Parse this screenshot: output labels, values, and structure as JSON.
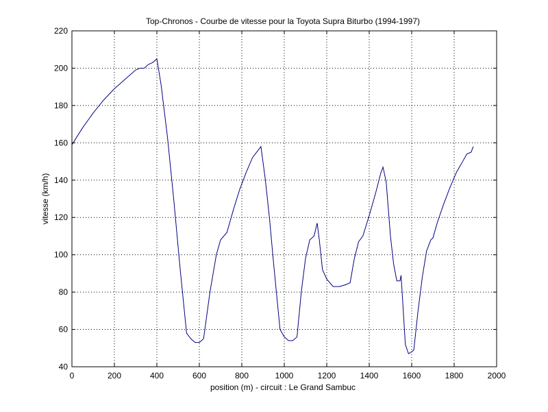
{
  "colors": {
    "background": "#ffffff",
    "axes": "#000000",
    "grid": "#000000",
    "line": "#00007f"
  },
  "chart_data": {
    "type": "line",
    "title": "Top-Chronos - Courbe de vitesse pour la Toyota Supra Biturbo (1994-1997)",
    "xlabel": "position (m) - circuit : Le Grand Sambuc",
    "ylabel": "vitesse (km/h)",
    "xlim": [
      0,
      2000
    ],
    "ylim": [
      40,
      220
    ],
    "xticks": [
      0,
      200,
      400,
      600,
      800,
      1000,
      1200,
      1400,
      1600,
      1800,
      2000
    ],
    "yticks": [
      40,
      60,
      80,
      100,
      120,
      140,
      160,
      180,
      200,
      220
    ],
    "grid": true,
    "legend": false,
    "series": [
      {
        "x": [
          0,
          50,
          100,
          150,
          200,
          250,
          300,
          320,
          340,
          360,
          380,
          400,
          420,
          450,
          480,
          510,
          540,
          560,
          580,
          600,
          620,
          650,
          680,
          700,
          730,
          760,
          790,
          820,
          850,
          870,
          890,
          910,
          930,
          950,
          980,
          1000,
          1020,
          1040,
          1060,
          1080,
          1100,
          1120,
          1140,
          1155,
          1165,
          1180,
          1200,
          1230,
          1260,
          1290,
          1310,
          1330,
          1350,
          1370,
          1400,
          1430,
          1455,
          1465,
          1480,
          1500,
          1515,
          1530,
          1545,
          1550,
          1555,
          1570,
          1585,
          1600,
          1610,
          1630,
          1650,
          1670,
          1690,
          1700,
          1720,
          1750,
          1780,
          1810,
          1840,
          1860,
          1880,
          1890
        ],
        "y": [
          159,
          168,
          176,
          183,
          189,
          194,
          199,
          200,
          200,
          202,
          203,
          205,
          191,
          163,
          129,
          92,
          58,
          55,
          53,
          53,
          55,
          80,
          100,
          108,
          112,
          124,
          135,
          144,
          152,
          155,
          158,
          141,
          120,
          95,
          60,
          56,
          54,
          54,
          56,
          80,
          98,
          108,
          110,
          117,
          108,
          92,
          87,
          83,
          83,
          84,
          85,
          98,
          107,
          110,
          121,
          133,
          144,
          147,
          139,
          110,
          95,
          86,
          86,
          89,
          80,
          52,
          47,
          48,
          49,
          70,
          88,
          102,
          108,
          109,
          117,
          127,
          136,
          144,
          150,
          154,
          155,
          158
        ]
      }
    ]
  }
}
